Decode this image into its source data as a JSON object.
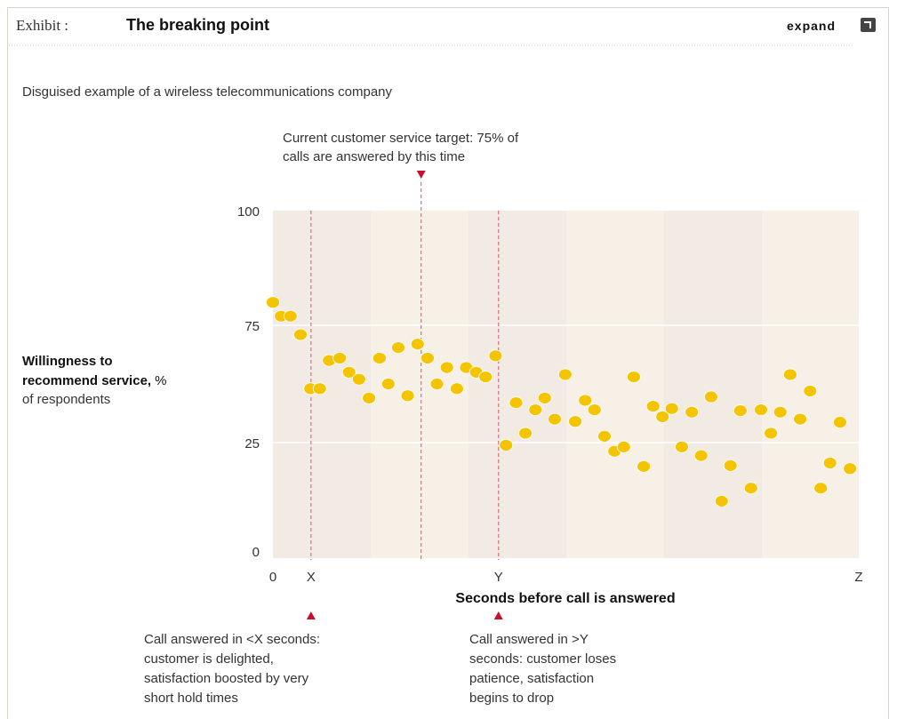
{
  "header": {
    "exhibit_label": "Exhibit :",
    "title": "The breaking point",
    "expand_label": "expand",
    "expand_icon": "expand-icon"
  },
  "subtitle": "Disguised example of a wireless telecommunications company",
  "colors": {
    "dot": "#f5c400",
    "marker": "#c8102e",
    "band_dark": "#f2ebe3",
    "band_light": "#f7f0e7",
    "grid": "#ffffff"
  },
  "chart_data": {
    "type": "scatter",
    "title": "The breaking point",
    "xlabel": "Seconds before call is answered",
    "ylabel_bold": "Willingness to recommend service,",
    "ylabel_unit": "%",
    "ylabel_sub": "of respondents",
    "ylim": [
      0,
      100
    ],
    "yticks": [
      {
        "value": 0,
        "label": "0"
      },
      {
        "value": 25,
        "label": "25"
      },
      {
        "value": 75,
        "label": "75"
      },
      {
        "value": 100,
        "label": "100"
      }
    ],
    "xlim": [
      0,
      100
    ],
    "xticks": [
      {
        "value": 0,
        "label": "0"
      },
      {
        "value": 6.5,
        "label": "X"
      },
      {
        "value": 38.5,
        "label": "Y"
      },
      {
        "value": 100,
        "label": "Z"
      }
    ],
    "grid": true,
    "points": [
      [
        0,
        80
      ],
      [
        1.4,
        77
      ],
      [
        3,
        77
      ],
      [
        4.7,
        71
      ],
      [
        6.4,
        48
      ],
      [
        8,
        48
      ],
      [
        9.6,
        60
      ],
      [
        11.4,
        61
      ],
      [
        13,
        55
      ],
      [
        14.7,
        52
      ],
      [
        16.4,
        44
      ],
      [
        18.2,
        61
      ],
      [
        19.7,
        50
      ],
      [
        21.4,
        65.5
      ],
      [
        23,
        45
      ],
      [
        24.7,
        67
      ],
      [
        26.4,
        61
      ],
      [
        28,
        50
      ],
      [
        29.7,
        57
      ],
      [
        31.4,
        48
      ],
      [
        33,
        57
      ],
      [
        34.7,
        55
      ],
      [
        36.3,
        53
      ],
      [
        38,
        62
      ],
      [
        39.8,
        24.4
      ],
      [
        41.5,
        42
      ],
      [
        43.1,
        29
      ],
      [
        44.8,
        39
      ],
      [
        46.4,
        44
      ],
      [
        48.1,
        35
      ],
      [
        49.9,
        54
      ],
      [
        51.6,
        34
      ],
      [
        53.3,
        43
      ],
      [
        54.9,
        39
      ],
      [
        56.6,
        27.7
      ],
      [
        58.3,
        23
      ],
      [
        59.9,
        24
      ],
      [
        61.6,
        53
      ],
      [
        63.3,
        19.5
      ],
      [
        64.9,
        40.5
      ],
      [
        66.5,
        36
      ],
      [
        68.1,
        39.5
      ],
      [
        69.8,
        24
      ],
      [
        71.5,
        38
      ],
      [
        73.1,
        22
      ],
      [
        74.8,
        44.5
      ],
      [
        76.6,
        11.5
      ],
      [
        78.1,
        19.7
      ],
      [
        79.8,
        38.6
      ],
      [
        81.6,
        14.5
      ],
      [
        83.3,
        39
      ],
      [
        85,
        29
      ],
      [
        86.6,
        38
      ],
      [
        88.3,
        54
      ],
      [
        90,
        35
      ],
      [
        91.7,
        47
      ],
      [
        93.5,
        14.5
      ],
      [
        95.1,
        20.3
      ],
      [
        96.8,
        33.7
      ],
      [
        98.5,
        19
      ]
    ],
    "annotations": {
      "target": {
        "x": 25.3,
        "lines": [
          "Current customer service target: 75% of",
          "calls are answered by this time"
        ]
      },
      "x_marker": {
        "x": 6.5,
        "lines": [
          "Call answered in <X seconds:",
          "customer is delighted,",
          "satisfaction boosted by very",
          "short hold times"
        ]
      },
      "y_marker": {
        "x": 38.5,
        "lines": [
          "Call answered in >Y",
          "seconds: customer loses",
          "patience, satisfaction",
          "begins to drop"
        ]
      }
    }
  }
}
